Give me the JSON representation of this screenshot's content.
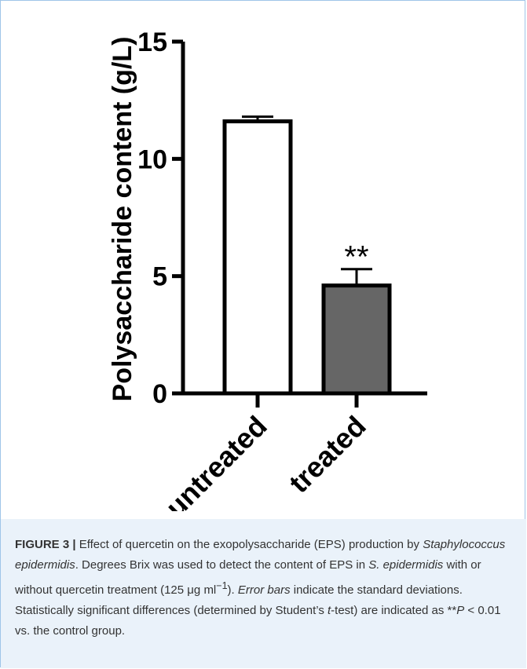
{
  "chart_data": {
    "type": "bar",
    "categories": [
      "untreated",
      "treated"
    ],
    "values": [
      11.6,
      4.6
    ],
    "errors": [
      0.2,
      0.7
    ],
    "fills": [
      "#ffffff",
      "#666666"
    ],
    "ylabel": "Polysaccharide content (g/L)",
    "ylim": [
      0,
      15
    ],
    "yticks": [
      0,
      5,
      10,
      15
    ],
    "annotations": [
      {
        "category": "treated",
        "text": "**"
      }
    ],
    "grid": false
  },
  "caption": {
    "label": "FIGURE 3 |",
    "part1": " Effect of quercetin on the exopolysaccharide (EPS) production by ",
    "species_italic": "Staphylococcus epidermidis",
    "part2": ". Degrees Brix was used to detect the content of EPS in ",
    "species_short_italic": "S. epidermidis",
    "part3": " with or without quercetin treatment (125 μg ml",
    "sup": "−1",
    "part4": "). ",
    "error_bars_italic": "Error bars",
    "part5": " indicate the standard deviations. Statistically significant differences (determined by Student’s ",
    "t_italic": "t",
    "part6": "-test) are indicated as **",
    "p_italic": "P",
    "part7": " < 0.01 vs. the control group."
  }
}
